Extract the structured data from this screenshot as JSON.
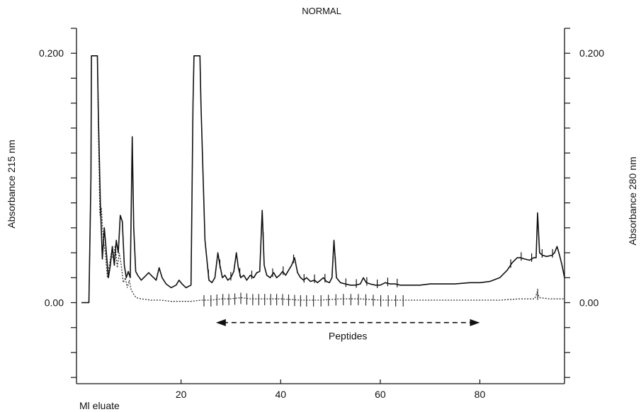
{
  "chart_data": {
    "type": "line",
    "title": "NORMAL",
    "xlabel": "Ml eluate",
    "ylabel_left": "Absorbance 215 nm",
    "ylabel_right": "Absorbance 280 nm",
    "xlim": [
      0,
      97
    ],
    "ylim": [
      -0.065,
      0.22
    ],
    "x_ticks": [
      20,
      40,
      60,
      80
    ],
    "x_tick_labels": [
      "20",
      "40",
      "60",
      "80"
    ],
    "y_ticks_left": [
      0.0,
      0.2
    ],
    "y_tick_labels_left": [
      "0.00",
      "0.200"
    ],
    "y_ticks_right": [
      0.0,
      0.2
    ],
    "y_tick_labels_right": [
      "0.00",
      "0.200"
    ],
    "grid": false,
    "annotation": {
      "text": "Peptides",
      "x_start": 27,
      "x_end": 80,
      "y": -0.016,
      "style": "dashed double arrow"
    },
    "series": [
      {
        "style": "solid",
        "x": [
          0.0,
          1.5,
          1.9,
          2.0,
          3.2,
          3.4,
          3.8,
          4.2,
          4.6,
          5.0,
          5.4,
          5.8,
          6.2,
          6.6,
          7.0,
          7.4,
          7.8,
          8.2,
          8.6,
          9.0,
          9.4,
          9.8,
          10.2,
          10.5,
          10.9,
          11.3,
          12.0,
          13.0,
          13.5,
          14.0,
          15.0,
          15.6,
          16.2,
          17.0,
          18.0,
          19.0,
          19.6,
          20.2,
          21.0,
          22.0,
          22.4,
          22.6,
          23.8,
          24.0,
          24.8,
          25.6,
          26.2,
          26.8,
          27.4,
          27.8,
          28.3,
          28.8,
          29.4,
          30.0,
          30.6,
          31.1,
          31.5,
          32.0,
          32.6,
          33.2,
          33.9,
          34.6,
          35.2,
          35.8,
          36.3,
          36.7,
          37.2,
          37.9,
          38.6,
          39.2,
          39.8,
          40.4,
          41.0,
          41.6,
          42.2,
          42.8,
          43.4,
          44.0,
          44.6,
          45.2,
          46.0,
          46.8,
          47.4,
          48.0,
          48.6,
          49.2,
          49.8,
          50.3,
          50.7,
          51.2,
          52.0,
          53.0,
          54.0,
          55.0,
          56.0,
          56.6,
          57.2,
          58.0,
          59.0,
          60.0,
          61.0,
          62.0,
          63.0,
          64.0,
          65.0,
          66.0,
          68.0,
          70.0,
          72.0,
          75.0,
          78.0,
          80.0,
          82.0,
          84.0,
          85.5,
          86.5,
          87.5,
          88.2,
          89.0,
          90.0,
          90.8,
          91.3,
          91.6,
          92.0,
          92.6,
          93.4,
          94.5,
          95.0,
          95.5,
          96.0,
          96.5,
          97.0
        ],
        "y": [
          0.0,
          0.0,
          0.1,
          0.198,
          0.198,
          0.15,
          0.08,
          0.035,
          0.06,
          0.04,
          0.02,
          0.03,
          0.045,
          0.03,
          0.05,
          0.04,
          0.07,
          0.065,
          0.03,
          0.02,
          0.025,
          0.02,
          0.133,
          0.06,
          0.025,
          0.022,
          0.018,
          0.022,
          0.024,
          0.022,
          0.018,
          0.028,
          0.02,
          0.015,
          0.012,
          0.014,
          0.018,
          0.015,
          0.012,
          0.014,
          0.16,
          0.198,
          0.198,
          0.16,
          0.05,
          0.018,
          0.016,
          0.02,
          0.04,
          0.03,
          0.02,
          0.022,
          0.018,
          0.02,
          0.025,
          0.04,
          0.028,
          0.02,
          0.022,
          0.018,
          0.022,
          0.02,
          0.024,
          0.025,
          0.074,
          0.03,
          0.022,
          0.02,
          0.024,
          0.02,
          0.022,
          0.025,
          0.022,
          0.026,
          0.03,
          0.036,
          0.024,
          0.02,
          0.018,
          0.02,
          0.017,
          0.018,
          0.016,
          0.018,
          0.02,
          0.017,
          0.016,
          0.02,
          0.05,
          0.02,
          0.016,
          0.015,
          0.014,
          0.014,
          0.015,
          0.02,
          0.016,
          0.015,
          0.014,
          0.014,
          0.016,
          0.015,
          0.015,
          0.014,
          0.014,
          0.014,
          0.014,
          0.015,
          0.015,
          0.015,
          0.016,
          0.016,
          0.017,
          0.02,
          0.026,
          0.032,
          0.036,
          0.036,
          0.035,
          0.034,
          0.036,
          0.036,
          0.072,
          0.04,
          0.038,
          0.037,
          0.038,
          0.04,
          0.045,
          0.038,
          0.03,
          0.02
        ]
      },
      {
        "style": "dotted",
        "x": [
          0.0,
          1.5,
          1.9,
          2.0,
          3.2,
          3.4,
          3.7,
          4.0,
          4.4,
          4.8,
          5.2,
          5.6,
          6.0,
          6.4,
          6.8,
          7.2,
          7.6,
          8.0,
          8.4,
          8.8,
          9.2,
          9.6,
          10.0,
          10.6,
          11.0,
          12.0,
          14.0,
          16.0,
          18.0,
          20.0,
          22.0,
          24.0,
          26.0,
          28.0,
          30.0,
          32.0,
          34.0,
          36.0,
          38.0,
          40.0,
          44.0,
          48.0,
          52.0,
          56.0,
          60.0,
          64.0,
          68.0,
          72.0,
          76.0,
          80.0,
          84.0,
          88.0,
          91.0,
          91.5,
          92.0,
          94.0,
          97.0
        ],
        "y": [
          0.0,
          0.0,
          0.1,
          0.198,
          0.198,
          0.14,
          0.07,
          0.076,
          0.05,
          0.04,
          0.02,
          0.03,
          0.04,
          0.035,
          0.046,
          0.028,
          0.04,
          0.03,
          0.016,
          0.02,
          0.012,
          0.018,
          0.01,
          0.006,
          0.004,
          0.003,
          0.002,
          0.002,
          0.001,
          0.001,
          0.001,
          0.002,
          0.002,
          0.003,
          0.003,
          0.004,
          0.003,
          0.003,
          0.003,
          0.003,
          0.002,
          0.002,
          0.003,
          0.003,
          0.002,
          0.002,
          0.002,
          0.002,
          0.002,
          0.002,
          0.002,
          0.003,
          0.003,
          0.008,
          0.004,
          0.003,
          0.003
        ]
      }
    ],
    "fraction_marks_solid": [
      25.5,
      27.8,
      30.0,
      31.8,
      34.2,
      36.5,
      38.4,
      40.5,
      42.6,
      44.7,
      46.8,
      48.9,
      51.0,
      53.1,
      55.2,
      57.3,
      59.4,
      61.5,
      63.4,
      86.2,
      88.3,
      90.4,
      92.5,
      94.6
    ],
    "fraction_marks_dotted": [
      24.6,
      26.0,
      27.2,
      28.4,
      29.6,
      30.8,
      32.0,
      33.2,
      34.4,
      35.6,
      36.8,
      38.0,
      39.2,
      40.4,
      41.6,
      42.8,
      44.0,
      45.2,
      46.6,
      48.1,
      49.6,
      51.1,
      52.6,
      54.1,
      55.6,
      57.1,
      58.6,
      60.1,
      61.6,
      63.1,
      64.6,
      91.6
    ]
  }
}
